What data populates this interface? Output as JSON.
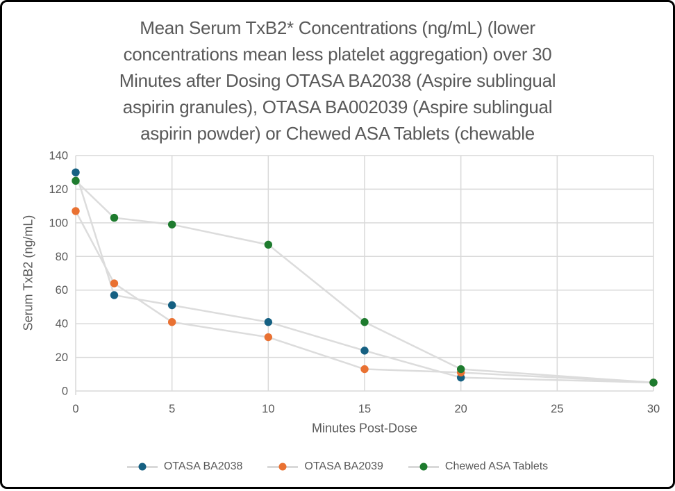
{
  "styles": {
    "text_color": "#595959",
    "grid_color": "#D9D9D9",
    "series_line_color": "#DCDCDC",
    "background": "#FFFFFF",
    "frame_border": "#000000"
  },
  "chart_data": {
    "type": "line",
    "title": "Mean Serum TxB2* Concentrations (ng/mL) (lower concentrations mean less platelet aggregation) over 30 Minutes after Dosing OTASA BA2038 (Aspire sublingual aspirin granules), OTASA BA002039 (Aspire sublingual aspirin powder) or Chewed ASA Tablets (chewable",
    "title_lines": [
      "Mean Serum TxB2* Concentrations (ng/mL) (lower",
      "concentrations mean less platelet aggregation) over 30",
      "Minutes after Dosing OTASA BA2038 (Aspire sublingual",
      "aspirin granules), OTASA BA002039 (Aspire sublingual",
      "aspirin powder) or Chewed ASA Tablets (chewable"
    ],
    "xlabel": "Minutes Post-Dose",
    "ylabel": "Serum TxB2 (ng/mL)",
    "x": [
      0,
      2,
      5,
      10,
      15,
      20,
      30
    ],
    "series": [
      {
        "name": "OTASA BA2038",
        "color": "#156082",
        "values": [
          130,
          57,
          51,
          41,
          24,
          8,
          5
        ]
      },
      {
        "name": "OTASA BA2039",
        "color": "#E97132",
        "values": [
          107,
          64,
          41,
          32,
          13,
          11,
          5
        ]
      },
      {
        "name": "Chewed ASA Tablets",
        "color": "#1E7B2E",
        "values": [
          125,
          103,
          99,
          87,
          41,
          13,
          5
        ]
      }
    ],
    "xticks": [
      0,
      5,
      10,
      15,
      20,
      25,
      30
    ],
    "yticks": [
      0,
      20,
      40,
      60,
      80,
      100,
      120,
      140
    ],
    "xlim": [
      0,
      30
    ],
    "ylim": [
      0,
      140
    ],
    "grid": true,
    "marker": "circle",
    "legend_position": "bottom"
  }
}
